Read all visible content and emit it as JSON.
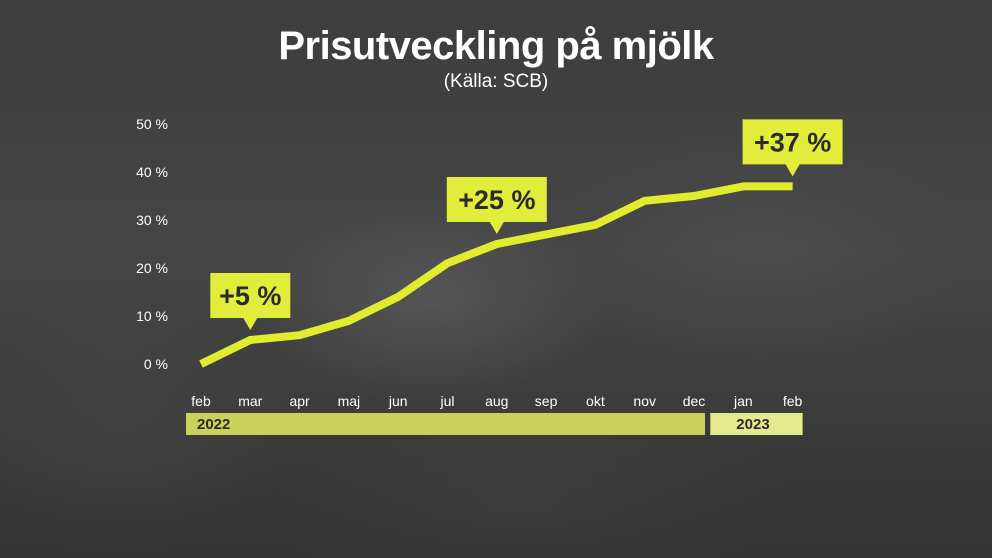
{
  "colors": {
    "line": "#e2ec2f",
    "callout_fill": "#e2ec3a",
    "callout_text": "#2b2b2b",
    "year_band_1": "#c9d15a",
    "year_band_2": "#e4ea8e",
    "text": "#ffffff"
  },
  "chart_data": {
    "type": "line",
    "title": "Prisutveckling på mjölk",
    "subtitle": "(Källa: SCB)",
    "x": [
      "feb",
      "mar",
      "apr",
      "maj",
      "jun",
      "jul",
      "aug",
      "sep",
      "okt",
      "nov",
      "dec",
      "jan",
      "feb"
    ],
    "y_ticks": [
      0,
      10,
      20,
      30,
      40,
      50
    ],
    "y_tick_labels": [
      "0 %",
      "10 %",
      "20 %",
      "30 %",
      "40 %",
      "50 %"
    ],
    "ylim": [
      0,
      50
    ],
    "grid": false,
    "series": [
      {
        "values": [
          0,
          5,
          6,
          9,
          14,
          21,
          25,
          27,
          29,
          34,
          35,
          37,
          37
        ]
      }
    ],
    "annotations": [
      {
        "text": "+5 %",
        "index": 1
      },
      {
        "text": "+25 %",
        "index": 6
      },
      {
        "text": "+37 %",
        "index": 12
      }
    ],
    "year_groups": [
      {
        "label": "2022",
        "start": 0,
        "end": 10
      },
      {
        "label": "2023",
        "start": 11,
        "end": 12
      }
    ]
  }
}
